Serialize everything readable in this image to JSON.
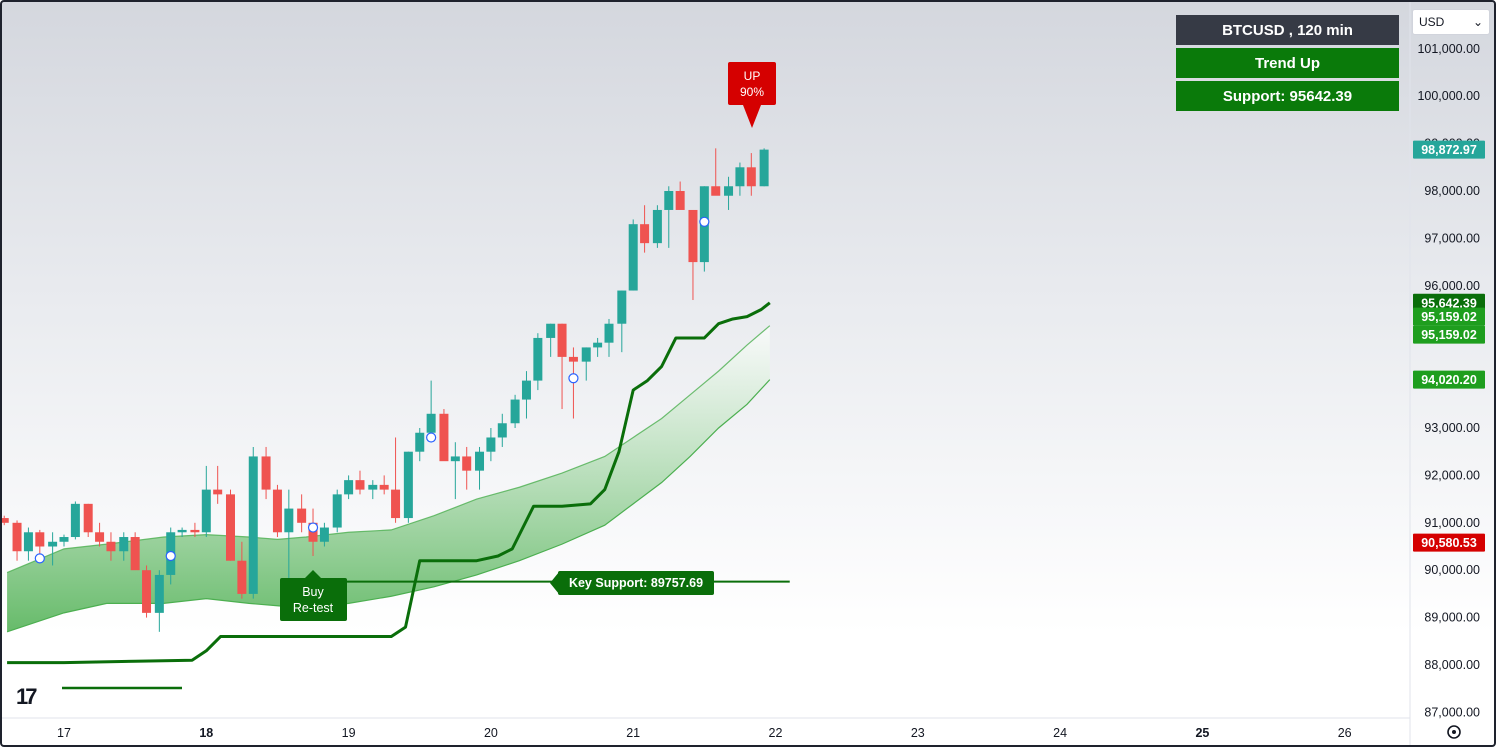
{
  "header": {
    "symbol_label": "BTCUSD , 120 min",
    "trend_label": "Trend Up",
    "support_label": "Support: 95642.39",
    "currency": "USD"
  },
  "annotations": {
    "signal_line1": "UP",
    "signal_line2": "90%",
    "buy_line1": "Buy",
    "buy_line2": "Re-test",
    "key_support": "Key Support: 89757.69"
  },
  "price_tags": [
    {
      "value": 98872.97,
      "label": "98,872.97",
      "color": "#26a69a"
    },
    {
      "value": 95642.39,
      "label": "95,642.39",
      "color": "#0a6e0a"
    },
    {
      "value": 95159.02,
      "label": "95,159.02",
      "color": "#1e9e1e",
      "offset": -9
    },
    {
      "value": 95159.02,
      "label": "95,159.02",
      "color": "#1e9e1e",
      "offset": 9
    },
    {
      "value": 94020.2,
      "label": "94,020.20",
      "color": "#1e9e1e"
    },
    {
      "value": 90580.53,
      "label": "90,580.53",
      "color": "#d50000"
    }
  ],
  "colors": {
    "up": "#26a69a",
    "down": "#ef5350",
    "trend_line": "#0a6e0a",
    "band": "#4caf50",
    "header_dark": "#363a45",
    "header_green": "#0a7a0a",
    "signal_red": "#d50000"
  },
  "chart_data": {
    "type": "candlestick",
    "title": "BTCUSD , 120 min",
    "y_ticks": [
      87000,
      88000,
      89000,
      90000,
      91000,
      92000,
      93000,
      94000,
      95000,
      96000,
      97000,
      98000,
      99000,
      100000,
      101000
    ],
    "y_tick_labels": [
      "87,000.00",
      "88,000.00",
      "89,000.00",
      "90,000.00",
      "91,000.00",
      "92,000.00",
      "93,000.00",
      "94,000.00",
      "95,000.00",
      "96,000.00",
      "97,000.00",
      "98,000.00",
      "99,000.00",
      "100,000.00",
      "101,000.00"
    ],
    "ylim": [
      86900,
      101500
    ],
    "x_ticks": [
      17,
      18,
      19,
      20,
      21,
      22,
      23,
      24,
      25,
      26
    ],
    "x_tick_labels": [
      "17",
      "18",
      "19",
      "20",
      "21",
      "22",
      "23",
      "24",
      "25",
      "26"
    ],
    "x_bold_labels": [
      "18",
      "25"
    ],
    "xlim": [
      16.6,
      26.8
    ],
    "key_support": 89757.69,
    "support": 95642.39,
    "candles": [
      [
        16.58,
        91100,
        91150,
        90950,
        91000
      ],
      [
        16.67,
        91000,
        91050,
        90200,
        90400
      ],
      [
        16.75,
        90400,
        90900,
        90200,
        90800
      ],
      [
        16.83,
        90800,
        90850,
        90300,
        90500
      ],
      [
        16.92,
        90500,
        90800,
        90100,
        90600
      ],
      [
        17.0,
        90600,
        90750,
        90500,
        90700
      ],
      [
        17.08,
        90700,
        91450,
        90650,
        91400
      ],
      [
        17.17,
        91400,
        91400,
        90700,
        90800
      ],
      [
        17.25,
        90800,
        91000,
        90500,
        90600
      ],
      [
        17.33,
        90600,
        90800,
        90200,
        90400
      ],
      [
        17.42,
        90400,
        90800,
        90200,
        90700
      ],
      [
        17.5,
        90700,
        90800,
        90100,
        90000
      ],
      [
        17.58,
        90000,
        90100,
        89000,
        89100
      ],
      [
        17.67,
        89100,
        90000,
        88700,
        89900
      ],
      [
        17.75,
        89900,
        90900,
        89700,
        90800
      ],
      [
        17.83,
        90800,
        90900,
        90700,
        90850
      ],
      [
        17.92,
        90850,
        91000,
        90700,
        90800
      ],
      [
        18.0,
        90800,
        92200,
        90700,
        91700
      ],
      [
        18.08,
        91700,
        92200,
        91400,
        91600
      ],
      [
        18.17,
        91600,
        91700,
        90200,
        90200
      ],
      [
        18.25,
        90200,
        90600,
        89400,
        89500
      ],
      [
        18.33,
        89500,
        92600,
        89400,
        92400
      ],
      [
        18.42,
        92400,
        92600,
        91500,
        91700
      ],
      [
        18.5,
        91700,
        91800,
        90700,
        90800
      ],
      [
        18.58,
        90800,
        91700,
        89700,
        91300
      ],
      [
        18.67,
        91300,
        91600,
        90800,
        91000
      ],
      [
        18.75,
        91000,
        91300,
        90300,
        90600
      ],
      [
        18.83,
        90600,
        91000,
        90500,
        90900
      ],
      [
        18.92,
        90900,
        91700,
        90800,
        91600
      ],
      [
        19.0,
        91600,
        92000,
        91500,
        91900
      ],
      [
        19.08,
        91900,
        92100,
        91600,
        91700
      ],
      [
        19.17,
        91700,
        91900,
        91500,
        91800
      ],
      [
        19.25,
        91800,
        92000,
        91600,
        91700
      ],
      [
        19.33,
        91700,
        92800,
        91000,
        91100
      ],
      [
        19.42,
        91100,
        92500,
        91000,
        92500
      ],
      [
        19.5,
        92500,
        93000,
        92300,
        92900
      ],
      [
        19.58,
        92900,
        94000,
        92700,
        93300
      ],
      [
        19.67,
        93300,
        93400,
        92400,
        92300
      ],
      [
        19.75,
        92300,
        92700,
        91500,
        92400
      ],
      [
        19.83,
        92400,
        92600,
        91700,
        92100
      ],
      [
        19.92,
        92100,
        92600,
        91700,
        92500
      ],
      [
        20.0,
        92500,
        93000,
        92300,
        92800
      ],
      [
        20.08,
        92800,
        93300,
        92600,
        93100
      ],
      [
        20.17,
        93100,
        93700,
        93000,
        93600
      ],
      [
        20.25,
        93600,
        94200,
        93200,
        94000
      ],
      [
        20.33,
        94000,
        95000,
        93800,
        94900
      ],
      [
        20.42,
        94900,
        95200,
        94500,
        95200
      ],
      [
        20.5,
        95200,
        95200,
        93400,
        94500
      ],
      [
        20.58,
        94500,
        94700,
        93200,
        94400
      ],
      [
        20.67,
        94400,
        94700,
        94000,
        94700
      ],
      [
        20.75,
        94700,
        94900,
        94500,
        94800
      ],
      [
        20.83,
        94800,
        95300,
        94500,
        95200
      ],
      [
        20.92,
        95200,
        95900,
        94600,
        95900
      ],
      [
        21.0,
        95900,
        97400,
        95900,
        97300
      ],
      [
        21.08,
        97300,
        97700,
        96700,
        96900
      ],
      [
        21.17,
        96900,
        97700,
        96800,
        97600
      ],
      [
        21.25,
        97600,
        98100,
        96800,
        98000
      ],
      [
        21.33,
        98000,
        98200,
        97700,
        97600
      ],
      [
        21.42,
        97600,
        97500,
        95700,
        96500
      ],
      [
        21.5,
        96500,
        98100,
        96300,
        98100
      ],
      [
        21.58,
        98100,
        98900,
        98000,
        97900
      ],
      [
        21.67,
        97900,
        98300,
        97600,
        98100
      ],
      [
        21.75,
        98100,
        98600,
        97900,
        98500
      ],
      [
        21.83,
        98500,
        98800,
        97900,
        98100
      ],
      [
        21.92,
        98100,
        98900,
        98100,
        98873
      ]
    ],
    "trend_line": [
      [
        16.6,
        88050
      ],
      [
        17.0,
        88050
      ],
      [
        17.5,
        88080
      ],
      [
        17.9,
        88100
      ],
      [
        18.0,
        88300
      ],
      [
        18.1,
        88600
      ],
      [
        18.5,
        88600
      ],
      [
        19.0,
        88600
      ],
      [
        19.3,
        88600
      ],
      [
        19.4,
        88800
      ],
      [
        19.5,
        90200
      ],
      [
        19.6,
        90200
      ],
      [
        19.9,
        90200
      ],
      [
        20.05,
        90300
      ],
      [
        20.15,
        90450
      ],
      [
        20.3,
        91350
      ],
      [
        20.5,
        91350
      ],
      [
        20.7,
        91400
      ],
      [
        20.8,
        91700
      ],
      [
        20.9,
        92500
      ],
      [
        21.0,
        93800
      ],
      [
        21.1,
        94000
      ],
      [
        21.2,
        94300
      ],
      [
        21.3,
        94900
      ],
      [
        21.4,
        94900
      ],
      [
        21.5,
        94900
      ],
      [
        21.6,
        95200
      ],
      [
        21.7,
        95300
      ],
      [
        21.8,
        95350
      ],
      [
        21.9,
        95500
      ],
      [
        21.96,
        95642
      ]
    ],
    "band_upper": [
      [
        16.6,
        89950
      ],
      [
        17.0,
        90450
      ],
      [
        17.3,
        90550
      ],
      [
        17.7,
        90700
      ],
      [
        18.0,
        90750
      ],
      [
        18.3,
        90700
      ],
      [
        18.5,
        90650
      ],
      [
        18.7,
        90700
      ],
      [
        19.0,
        90800
      ],
      [
        19.3,
        90850
      ],
      [
        19.6,
        91150
      ],
      [
        19.9,
        91500
      ],
      [
        20.2,
        91750
      ],
      [
        20.5,
        92050
      ],
      [
        20.8,
        92400
      ],
      [
        21.0,
        92800
      ],
      [
        21.2,
        93200
      ],
      [
        21.4,
        93700
      ],
      [
        21.6,
        94200
      ],
      [
        21.8,
        94750
      ],
      [
        21.96,
        95159
      ]
    ],
    "band_lower": [
      [
        16.6,
        88700
      ],
      [
        17.0,
        89100
      ],
      [
        17.3,
        89300
      ],
      [
        17.7,
        89300
      ],
      [
        18.0,
        89400
      ],
      [
        18.3,
        89300
      ],
      [
        18.5,
        89250
      ],
      [
        18.7,
        89200
      ],
      [
        19.0,
        89300
      ],
      [
        19.3,
        89450
      ],
      [
        19.6,
        89650
      ],
      [
        19.9,
        89900
      ],
      [
        20.2,
        90200
      ],
      [
        20.5,
        90550
      ],
      [
        20.8,
        90950
      ],
      [
        21.0,
        91400
      ],
      [
        21.2,
        91850
      ],
      [
        21.4,
        92400
      ],
      [
        21.6,
        93000
      ],
      [
        21.8,
        93500
      ],
      [
        21.96,
        94020
      ]
    ],
    "markers": [
      [
        16.83,
        90250
      ],
      [
        17.75,
        90300
      ],
      [
        18.75,
        90900
      ],
      [
        19.58,
        92800
      ],
      [
        20.58,
        94050
      ],
      [
        21.5,
        97350
      ]
    ]
  }
}
